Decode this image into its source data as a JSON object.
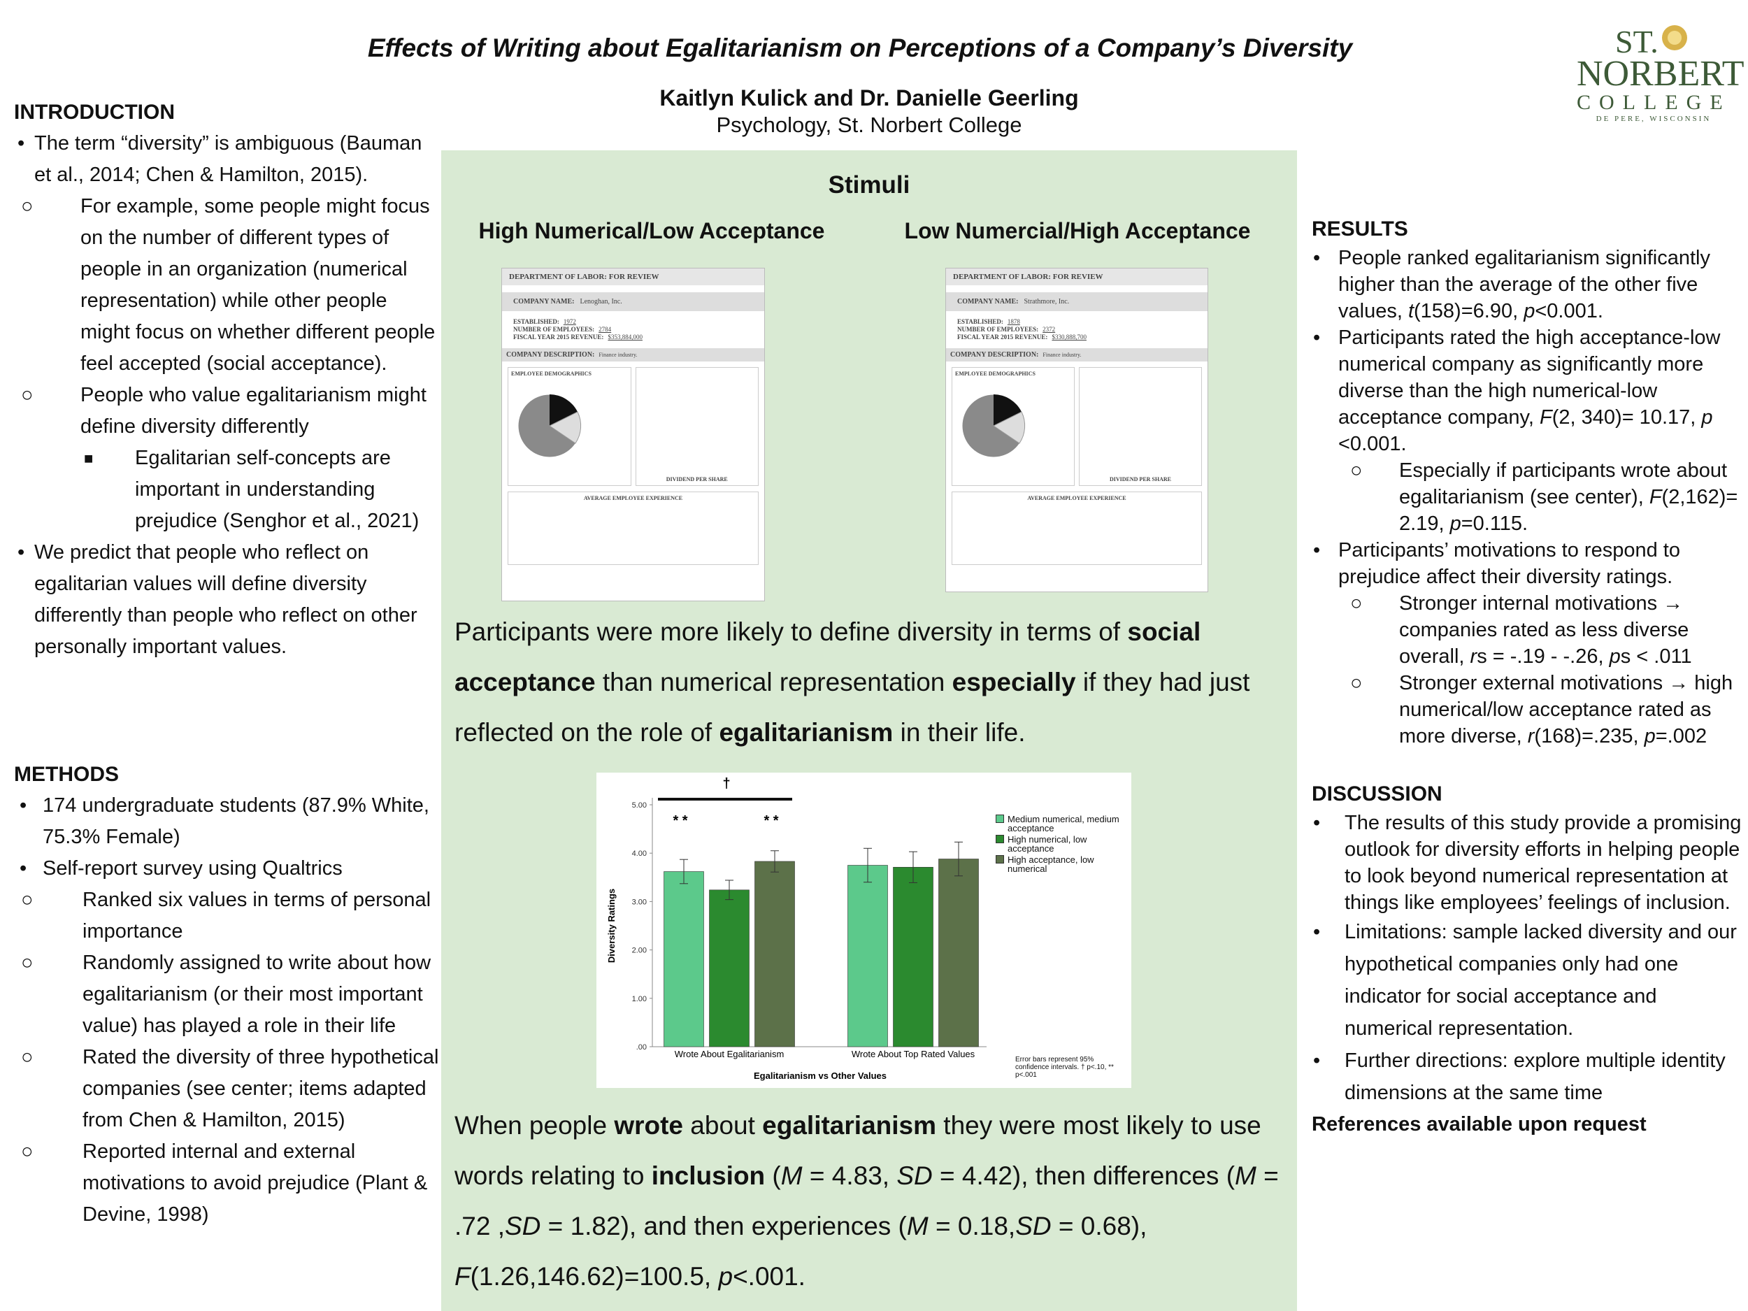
{
  "header": {
    "title": "Effects of Writing about Egalitarianism on Perceptions of a Company’s Diversity",
    "authors": "Kaitlyn Kulick and Dr. Danielle Geerling",
    "affiliation": "Psychology, St. Norbert College"
  },
  "logo": [
    "ST.",
    "NORBERT",
    "COLLEGE",
    "DE PERE, WISCONSIN"
  ],
  "introduction": {
    "heading": "INTRODUCTION",
    "items": [
      "The term “diversity” is ambiguous (Bauman et al., 2014; Chen & Hamilton, 2015).",
      "For example, some people might focus on the number of different types of people in an organization (numerical representation) while other people might focus on whether different people feel accepted (social acceptance).",
      "People who value egalitarianism might define diversity differently",
      "Egalitarian self-concepts are important in understanding prejudice (Senghor et al., 2021)",
      "We predict that people who reflect on egalitarian values will define diversity differently than people who reflect on other personally important values."
    ]
  },
  "methods": {
    "heading": "METHODS",
    "items": [
      "174 undergraduate students (87.9% White, 75.3% Female)",
      "Self-report survey using Qualtrics",
      "Ranked six values in terms of personal importance",
      "Randomly assigned to write about how egalitarianism (or their most important value) has played a role in their life",
      "Rated the diversity of three hypothetical companies (see center; items adapted from Chen & Hamilton, 2015)",
      "Reported internal and external motivations to avoid prejudice (Plant & Devine, 1998)"
    ]
  },
  "stimuli": {
    "heading": "Stimuli",
    "left": {
      "heading": "High Numerical/Low Acceptance",
      "form_title": "DEPARTMENT OF LABOR: FOR REVIEW",
      "company_label": "COMPANY NAME:",
      "company": "Lenoghan, Inc.",
      "established_label": "ESTABLISHED:",
      "established": "1972",
      "employees_label": "NUMBER OF EMPLOYEES:",
      "employees": "2784",
      "revenue_label": "FISCAL YEAR 2015 REVENUE:",
      "revenue": "$353,884,000",
      "description_label": "COMPANY DESCRIPTION:",
      "description": "Finance industry.",
      "demographics_title": "EMPLOYEE DEMOGRAPHICS",
      "dividend_title": "DIVIDEND PER SHARE",
      "experience_title": "AVERAGE EMPLOYEE EXPERIENCE"
    },
    "right": {
      "heading": "Low Numercial/High Acceptance",
      "form_title": "DEPARTMENT OF LABOR: FOR REVIEW",
      "company_label": "COMPANY NAME:",
      "company": "Strathmore, Inc.",
      "established_label": "ESTABLISHED:",
      "established": "1878",
      "employees_label": "NUMBER OF EMPLOYEES:",
      "employees": "2372",
      "revenue_label": "FISCAL YEAR 2015 REVENUE:",
      "revenue": "$330,888,700",
      "description_label": "COMPANY DESCRIPTION:",
      "description": "Finance industry.",
      "demographics_title": "EMPLOYEE DEMOGRAPHICS",
      "dividend_title": "DIVIDEND PER SHARE",
      "experience_title": "AVERAGE EMPLOYEE EXPERIENCE"
    }
  },
  "findings": [
    [
      "Participants were more likely to define diversity in terms of ",
      "social acceptance",
      " than numerical representation ",
      "especially",
      " if they had just reflected on the role of ",
      "egalitarianism",
      " in their life."
    ],
    [
      "When people ",
      "wrote",
      " about ",
      "egalitarianism",
      " they were most likely to use words relating to ",
      "inclusion",
      " (",
      "M",
      " = 4.83, ",
      "SD",
      " = 4.42), then differences (",
      "M",
      " = .72 ,",
      "SD",
      " = 1.82), and then experiences (",
      "M",
      " = 0.18,",
      "SD",
      " = 0.68), ",
      "F",
      "(1.26,146.62)=100.5, ",
      "p",
      "<.001."
    ]
  ],
  "chart_data": {
    "type": "bar",
    "x_label": "Egalitarianism vs Other Values",
    "y_label": "Diversity Ratings",
    "categories": [
      "Wrote About Egalitarianism",
      "Wrote About Top Rated Values"
    ],
    "series": [
      {
        "name": "Medium numerical, medium acceptance",
        "color": "#5cc98b",
        "values": [
          3.62,
          3.75
        ],
        "errors": [
          0.25,
          0.35
        ]
      },
      {
        "name": "High numerical, low acceptance",
        "color": "#2b8a2f",
        "values": [
          3.24,
          3.71
        ],
        "errors": [
          0.2,
          0.32
        ]
      },
      {
        "name": "High acceptance, low numerical",
        "color": "#5c7149",
        "values": [
          3.83,
          3.88
        ],
        "errors": [
          0.22,
          0.35
        ]
      }
    ],
    "ylim": [
      0,
      5
    ],
    "yticks": [
      {
        "value": 0,
        "label": ".00"
      },
      {
        "value": 1,
        "label": "1.00"
      },
      {
        "value": 2,
        "label": "2.00"
      },
      {
        "value": 3,
        "label": "3.00"
      },
      {
        "value": 4,
        "label": "4.00"
      },
      {
        "value": 5,
        "label": "5.00"
      }
    ],
    "annotations": [
      "†",
      "* *",
      "* *"
    ],
    "note": "Error bars represent 95% confidence intervals. † p<.10, ** p<.001"
  },
  "results": {
    "heading": "RESULTS",
    "items": [
      [
        "People ranked egalitarianism significantly higher than the average of the other five values, ",
        "t",
        "(158)=6.90, ",
        "p",
        "<0.001."
      ],
      [
        "Participants rated the high acceptance-low numerical company as significantly more diverse than the high numerical-low acceptance company, ",
        "F",
        "(2, 340)= 10.17, ",
        "p",
        " <0.001."
      ],
      [
        "Especially if participants wrote about egalitarianism (see center), ",
        "F",
        "(2,162)= 2.19, ",
        "p",
        "=0.115."
      ],
      [
        "Participants’ motivations to respond to prejudice affect their diversity ratings."
      ],
      [
        "Stronger internal motivations → companies rated as less diverse overall, ",
        "r",
        "s = -.19 - -.26, ",
        "p",
        "s < .011"
      ],
      [
        "Stronger external motivations → high numerical/low acceptance rated as more diverse, ",
        "r",
        "(168)=.235, ",
        "p",
        "=.002"
      ]
    ]
  },
  "discussion": {
    "heading": "DISCUSSION",
    "items": [
      "The results of this study provide a promising outlook for diversity efforts in helping people to look beyond numerical representation at things like employees’ feelings of inclusion.",
      "Limitations: sample lacked diversity and our hypothetical companies only had one indicator for social acceptance and numerical representation.",
      "Further directions: explore multiple identity dimensions at the same time"
    ],
    "references": "References available upon request"
  }
}
